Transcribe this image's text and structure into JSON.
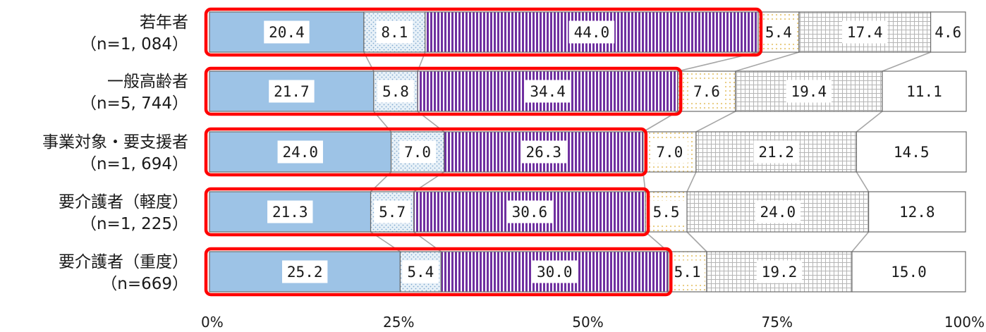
{
  "colors": {
    "blue": "#9dc3e6",
    "dots_bg": "#e8f1f8",
    "dots_fg": "#7fa8cf",
    "purple": "#7030a0",
    "yellow": "#f5c84a",
    "grid_gray": "#9a9a9a",
    "connector": "#a6a6a6",
    "highlight": "#ff0000"
  },
  "chart_data": {
    "type": "bar",
    "orientation": "horizontal",
    "stacked": true,
    "title": "",
    "xlabel": "",
    "ylabel": "",
    "xlim": [
      0,
      100
    ],
    "x_ticks": [
      "0%",
      "25%",
      "50%",
      "75%",
      "100%"
    ],
    "categories": [
      [
        "若年者",
        "（n=1, 084）"
      ],
      [
        "一般高齢者",
        "（n=5, 744）"
      ],
      [
        "事業対象・要支援者",
        "（n=1, 694）"
      ],
      [
        "要介護者（軽度）",
        "（n=1, 225）"
      ],
      [
        "要介護者（重度）",
        "（n=669）"
      ]
    ],
    "series": [
      {
        "values": [
          20.4,
          21.7,
          24.0,
          21.3,
          25.2
        ],
        "labels": [
          "20.4",
          "21.7",
          "24.0",
          "21.3",
          "25.2"
        ]
      },
      {
        "values": [
          8.1,
          5.8,
          7.0,
          5.7,
          5.4
        ],
        "labels": [
          "8.1",
          "5.8",
          "7.0",
          "5.7",
          "5.4"
        ]
      },
      {
        "values": [
          44.0,
          34.4,
          26.3,
          30.6,
          30.0
        ],
        "labels": [
          "44.0",
          "34.4",
          "26.3",
          "30.6",
          "30.0"
        ]
      },
      {
        "values": [
          5.4,
          7.6,
          7.0,
          5.5,
          5.1
        ],
        "labels": [
          "5.4",
          "7.6",
          "7.0",
          "5.5",
          "5.1"
        ]
      },
      {
        "values": [
          17.4,
          19.4,
          21.2,
          24.0,
          19.2
        ],
        "labels": [
          "17.4",
          "19.4",
          "21.2",
          "24.0",
          "19.2"
        ]
      },
      {
        "values": [
          4.6,
          11.1,
          14.5,
          12.8,
          15.0
        ],
        "labels": [
          "4.6",
          "11.1",
          "14.5",
          "12.8",
          "15.0"
        ]
      }
    ],
    "highlight_first_n_segments": 3
  }
}
